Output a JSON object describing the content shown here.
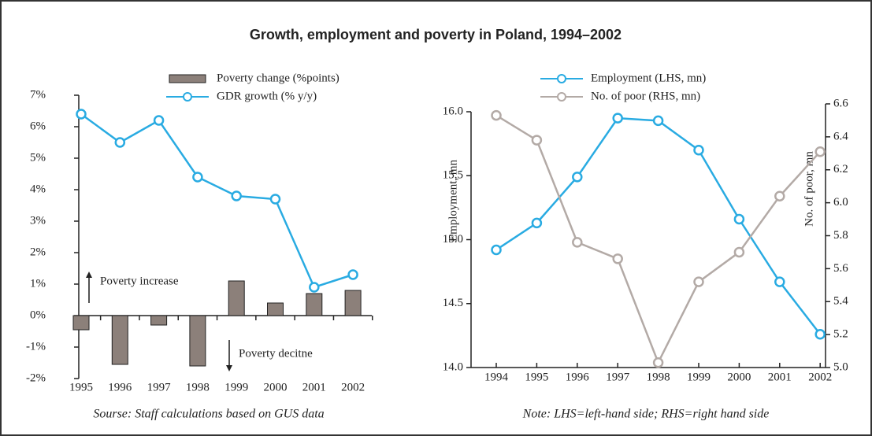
{
  "title": "Growth, employment and poverty in Poland, 1994–2002",
  "chart_data": [
    {
      "type": "bar",
      "categories": [
        "1995",
        "1996",
        "1997",
        "1998",
        "1999",
        "2000",
        "2001",
        "2002"
      ],
      "series": [
        {
          "name": "Poverty change (%points)",
          "type": "bar",
          "color": "#8c807a",
          "values": [
            -0.45,
            -1.55,
            -0.3,
            -1.6,
            1.1,
            0.4,
            0.7,
            0.8
          ]
        },
        {
          "name": "GDR growth (% y/y)",
          "type": "line",
          "color": "#29abe2",
          "values": [
            6.4,
            5.5,
            6.2,
            4.4,
            3.8,
            3.7,
            0.9,
            1.3
          ]
        }
      ],
      "ylim": [
        -2,
        7
      ],
      "yticks": [
        {
          "value": -2,
          "label": "-2%"
        },
        {
          "value": -1,
          "label": "-1%"
        },
        {
          "value": 0,
          "label": "0%"
        },
        {
          "value": 1,
          "label": "1%"
        },
        {
          "value": 2,
          "label": "2%"
        },
        {
          "value": 3,
          "label": "3%"
        },
        {
          "value": 4,
          "label": "4%"
        },
        {
          "value": 5,
          "label": "5%"
        },
        {
          "value": 6,
          "label": "6%"
        },
        {
          "value": 7,
          "label": "7%"
        }
      ],
      "annotations": [
        "Poverty increase",
        "Poverty decitne"
      ],
      "note": "Sourse: Staff calculations based on GUS data"
    },
    {
      "type": "line",
      "categories": [
        "1994",
        "1995",
        "1996",
        "1997",
        "1998",
        "1999",
        "2000",
        "2001",
        "2002"
      ],
      "series": [
        {
          "name": "Employment (LHS, mn)",
          "type": "line",
          "color": "#29abe2",
          "values": [
            14.92,
            15.13,
            15.49,
            15.95,
            15.93,
            15.7,
            15.16,
            14.67,
            14.26
          ]
        },
        {
          "name": "No. of poor (RHS, mn)",
          "type": "line",
          "color": "#b3aaa6",
          "axis": "y2",
          "values": [
            6.53,
            6.38,
            5.76,
            5.66,
            5.03,
            5.52,
            5.7,
            6.04,
            6.31
          ]
        }
      ],
      "ylabel": "Employment, mn",
      "y2label": "No. of poor, mn",
      "ylim": [
        14.0,
        16.0
      ],
      "yticks": [
        {
          "value": 14.0,
          "label": "14.0"
        },
        14.5,
        {
          "value": 15.0,
          "label": "15.0"
        },
        15.5,
        {
          "value": 16.0,
          "label": "16.0"
        }
      ],
      "y2lim": [
        5.0,
        6.6
      ],
      "y2ticks": [
        {
          "value": 5.0,
          "label": "5.0"
        },
        5.2,
        5.4,
        5.6,
        5.8,
        {
          "value": 6.0,
          "label": "6.0"
        },
        6.2,
        6.4,
        6.6
      ],
      "note": "Note: LHS=left-hand side; RHS=right hand side"
    }
  ]
}
